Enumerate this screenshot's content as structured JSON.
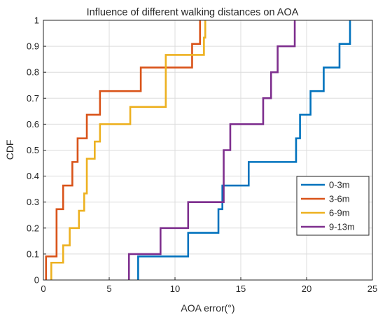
{
  "chart_data": {
    "type": "line",
    "title": "Influence of different walking distances on AOA",
    "xlabel": "AOA error(°)",
    "ylabel": "CDF",
    "xlim": [
      0,
      25
    ],
    "ylim": [
      0,
      1
    ],
    "xticks": [
      0,
      5,
      10,
      15,
      20,
      25
    ],
    "yticks": [
      0,
      0.1,
      0.2,
      0.3,
      0.4,
      0.5,
      0.6,
      0.7,
      0.8,
      0.9,
      1
    ],
    "grid": true,
    "legend_position": "lower-right",
    "series": [
      {
        "name": "0-3m",
        "color": "#0072BD",
        "x": [
          7.2,
          11,
          13.3,
          13.6,
          15.6,
          19.2,
          19.5,
          20.3,
          21.3,
          22.5,
          23.3
        ],
        "y": [
          0.0909,
          0.1818,
          0.2727,
          0.3636,
          0.4545,
          0.5455,
          0.6364,
          0.7273,
          0.8182,
          0.9091,
          1.0
        ]
      },
      {
        "name": "3-6m",
        "color": "#D95319",
        "x": [
          0.2,
          1.0,
          1.5,
          2.2,
          2.6,
          3.3,
          4.3,
          7.4,
          11.0,
          11.3,
          11.9
        ],
        "y": [
          0.0909,
          0.2727,
          0.3636,
          0.4545,
          0.5455,
          0.6364,
          0.7273,
          0.8182,
          0.8182,
          0.9091,
          1.0
        ]
      },
      {
        "name": "6-9m",
        "color": "#EDB120",
        "x": [
          0.6,
          1.5,
          2.0,
          2.7,
          3.1,
          3.3,
          3.9,
          4.3,
          6.6,
          9.3,
          12.2,
          12.3
        ],
        "y": [
          0.0667,
          0.1333,
          0.2,
          0.2667,
          0.3333,
          0.4667,
          0.5333,
          0.6,
          0.6667,
          0.8667,
          0.9333,
          1.0
        ]
      },
      {
        "name": "9-13m",
        "color": "#7E2F8E",
        "x": [
          6.5,
          8.9,
          11.0,
          13.7,
          14.2,
          16.7,
          17.3,
          17.8,
          19.1
        ],
        "y": [
          0.1,
          0.2,
          0.3,
          0.5,
          0.6,
          0.7,
          0.8,
          0.9,
          1.0
        ]
      }
    ]
  }
}
